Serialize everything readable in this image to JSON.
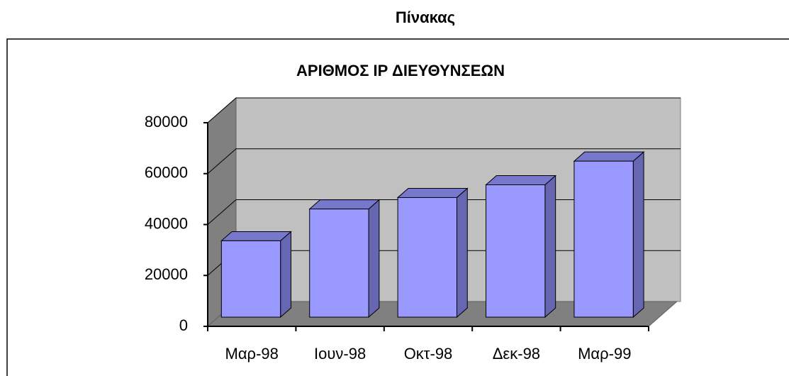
{
  "page_title": "Πίνακας",
  "chart_data": {
    "type": "bar3d",
    "title": "ΑΡΙΘΜΟΣ IP ΔΙΕΥΘΥΝΣΕΩΝ",
    "categories": [
      "Μαρ-98",
      "Ιουν-98",
      "Οκτ-98",
      "Δεκ-98",
      "Μαρ-99"
    ],
    "values": [
      30000,
      42500,
      47000,
      52000,
      61300
    ],
    "color": "#9999ff",
    "ylim": [
      0,
      80000
    ],
    "yticks": [
      0,
      20000,
      40000,
      60000,
      80000
    ],
    "grid": true
  }
}
